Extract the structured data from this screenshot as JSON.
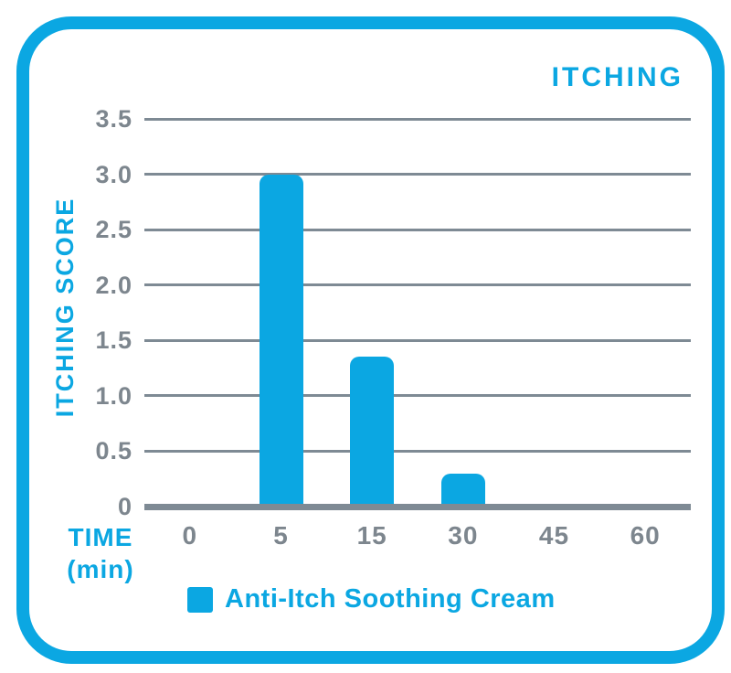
{
  "colors": {
    "accent": "#0BA7E2",
    "grid": "#7E8A94",
    "tick_text": "#7D868E",
    "card_background": "#ffffff"
  },
  "chart_data": {
    "type": "bar",
    "title": "ITCHING",
    "ylabel": "ITCHING SCORE",
    "xlabel": "TIME (min)",
    "xlabel_lines": [
      "TIME",
      "(min)"
    ],
    "categories": [
      "0",
      "5",
      "15",
      "30",
      "45",
      "60"
    ],
    "series": [
      {
        "name": "Anti-Itch Soothing Cream",
        "values": [
          0,
          3.0,
          1.35,
          0.3,
          0,
          0
        ]
      }
    ],
    "yticks": [
      "3.5",
      "3.0",
      "2.5",
      "2.0",
      "1.5",
      "1.0",
      "0.5",
      "0"
    ],
    "ylim": [
      0,
      3.5
    ],
    "grid": true,
    "legend_position": "bottom",
    "legend": "Anti-Itch Soothing Cream"
  }
}
